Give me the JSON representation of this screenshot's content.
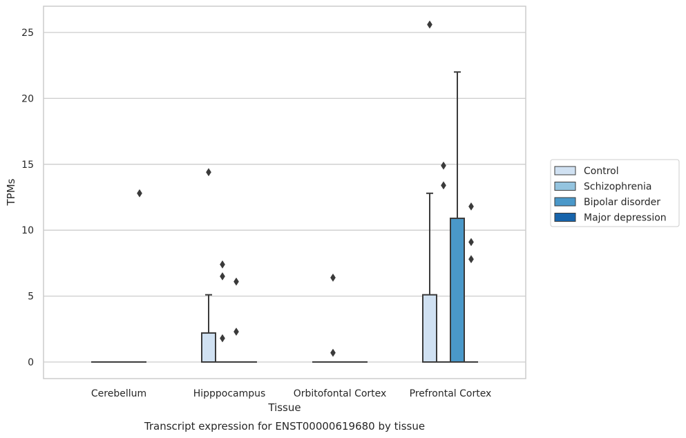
{
  "chart_data": {
    "type": "box",
    "title": "",
    "caption": "Transcript expression for ENST00000619680 by tissue",
    "xlabel": "Tissue",
    "ylabel": "TPMs",
    "ylim": [
      -1.2,
      27
    ],
    "yticks": [
      0,
      5,
      10,
      15,
      20,
      25
    ],
    "grid": "horizontal",
    "legend_position": "right",
    "categories": [
      "Cerebellum",
      "Hipppocampus",
      "Orbitofontal Cortex",
      "Prefrontal Cortex"
    ],
    "series": [
      {
        "name": "Control",
        "color": "#d0e1f2"
      },
      {
        "name": "Schizophrenia",
        "color": "#94c4df"
      },
      {
        "name": "Bipolar disorder",
        "color": "#4a98c9"
      },
      {
        "name": "Major depression",
        "color": "#1764ab"
      }
    ],
    "boxes": [
      {
        "category": "Cerebellum",
        "series": "Control",
        "q1": 0,
        "median": 0,
        "q3": 0,
        "whisker_low": 0,
        "whisker_high": 0,
        "outliers": []
      },
      {
        "category": "Cerebellum",
        "series": "Schizophrenia",
        "q1": 0,
        "median": 0,
        "q3": 0,
        "whisker_low": 0,
        "whisker_high": 0,
        "outliers": []
      },
      {
        "category": "Cerebellum",
        "series": "Bipolar disorder",
        "q1": 0,
        "median": 0,
        "q3": 0,
        "whisker_low": 0,
        "whisker_high": 0,
        "outliers": []
      },
      {
        "category": "Cerebellum",
        "series": "Major depression",
        "q1": 0,
        "median": 0,
        "q3": 0,
        "whisker_low": 0,
        "whisker_high": 0,
        "outliers": [
          12.8
        ]
      },
      {
        "category": "Hipppocampus",
        "series": "Control",
        "q1": 0,
        "median": 0,
        "q3": 2.2,
        "whisker_low": 0,
        "whisker_high": 5.1,
        "outliers": [
          14.4
        ]
      },
      {
        "category": "Hipppocampus",
        "series": "Schizophrenia",
        "q1": 0,
        "median": 0,
        "q3": 0,
        "whisker_low": 0,
        "whisker_high": 0,
        "outliers": [
          1.8,
          6.5,
          7.4
        ]
      },
      {
        "category": "Hipppocampus",
        "series": "Bipolar disorder",
        "q1": 0,
        "median": 0,
        "q3": 0,
        "whisker_low": 0,
        "whisker_high": 0,
        "outliers": [
          2.3,
          6.1
        ]
      },
      {
        "category": "Hipppocampus",
        "series": "Major depression",
        "q1": 0,
        "median": 0,
        "q3": 0,
        "whisker_low": 0,
        "whisker_high": 0,
        "outliers": []
      },
      {
        "category": "Orbitofontal Cortex",
        "series": "Control",
        "q1": 0,
        "median": 0,
        "q3": 0,
        "whisker_low": 0,
        "whisker_high": 0,
        "outliers": []
      },
      {
        "category": "Orbitofontal Cortex",
        "series": "Schizophrenia",
        "q1": 0,
        "median": 0,
        "q3": 0,
        "whisker_low": 0,
        "whisker_high": 0,
        "outliers": [
          0.7,
          6.4
        ]
      },
      {
        "category": "Orbitofontal Cortex",
        "series": "Bipolar disorder",
        "q1": 0,
        "median": 0,
        "q3": 0,
        "whisker_low": 0,
        "whisker_high": 0,
        "outliers": []
      },
      {
        "category": "Orbitofontal Cortex",
        "series": "Major depression",
        "q1": 0,
        "median": 0,
        "q3": 0,
        "whisker_low": 0,
        "whisker_high": 0,
        "outliers": []
      },
      {
        "category": "Prefrontal Cortex",
        "series": "Control",
        "q1": 0,
        "median": 0,
        "q3": 5.1,
        "whisker_low": 0,
        "whisker_high": 12.8,
        "outliers": [
          25.6
        ]
      },
      {
        "category": "Prefrontal Cortex",
        "series": "Schizophrenia",
        "q1": 0,
        "median": 0,
        "q3": 0,
        "whisker_low": 0,
        "whisker_high": 0,
        "outliers": [
          13.4,
          14.9
        ]
      },
      {
        "category": "Prefrontal Cortex",
        "series": "Bipolar disorder",
        "q1": 0,
        "median": 0,
        "q3": 10.9,
        "whisker_low": 0,
        "whisker_high": 22.0,
        "outliers": []
      },
      {
        "category": "Prefrontal Cortex",
        "series": "Major depression",
        "q1": 0,
        "median": 0,
        "q3": 0,
        "whisker_low": 0,
        "whisker_high": 0,
        "outliers": [
          7.8,
          9.1,
          11.8
        ]
      }
    ]
  }
}
